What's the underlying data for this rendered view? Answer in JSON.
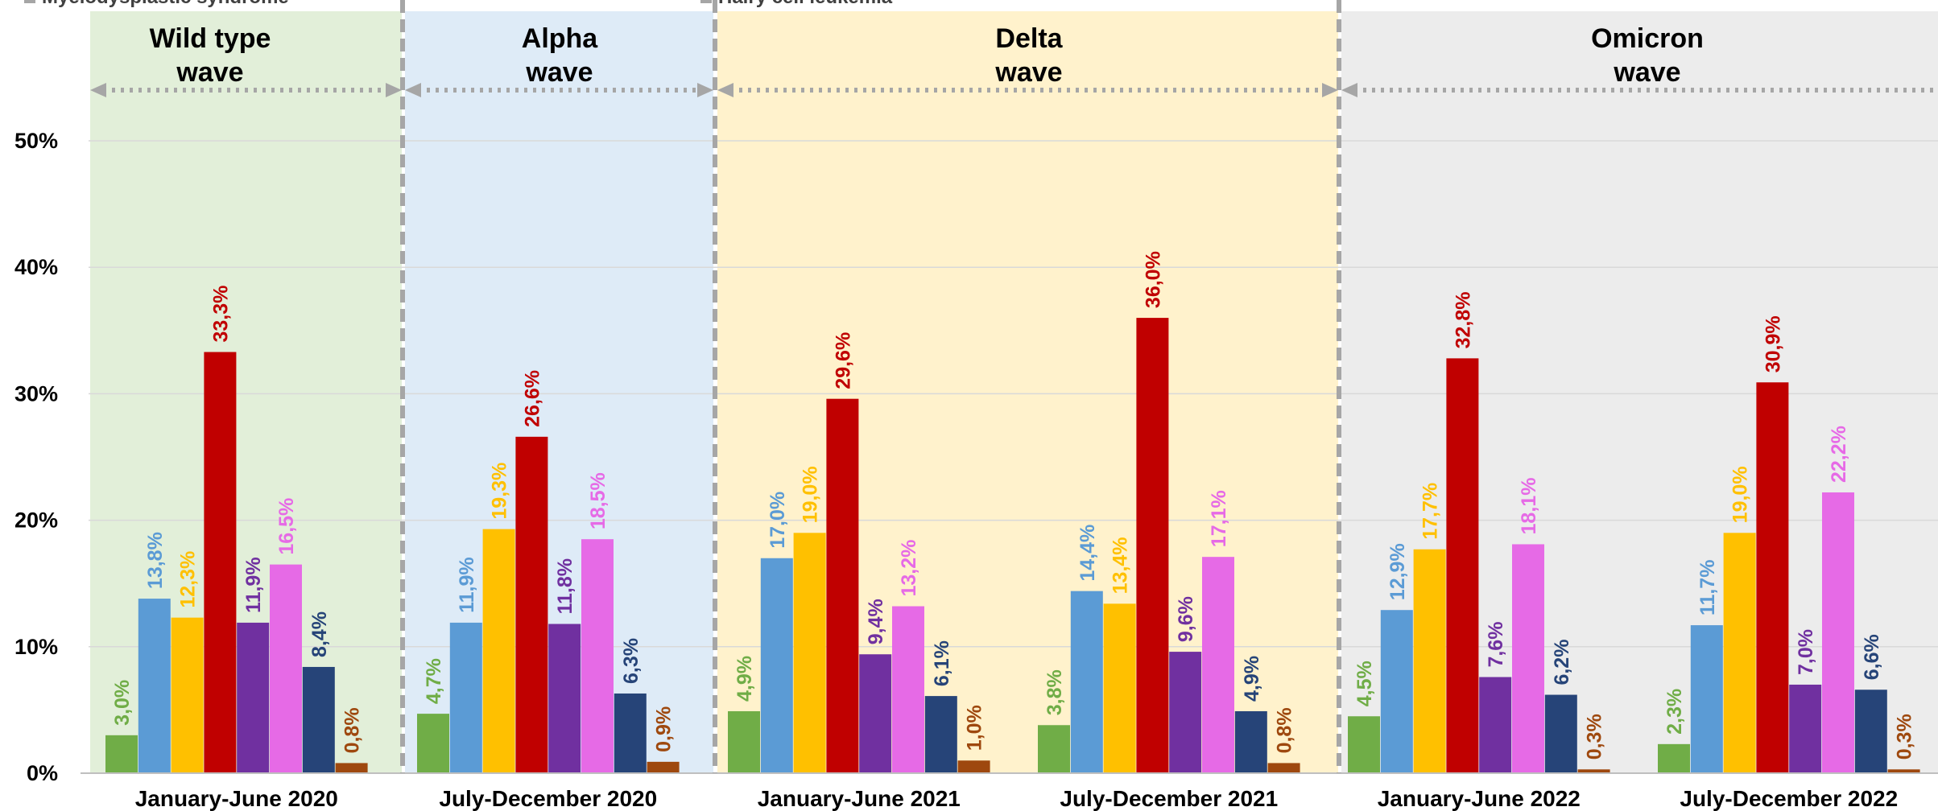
{
  "chart_data": {
    "type": "bar",
    "categories": [
      "January-June 2020",
      "July-December 2020",
      "January-June 2021",
      "July-December 2021",
      "January-June 2022",
      "July-December 2022"
    ],
    "ylim": [
      0,
      50
    ],
    "ytick_values": [
      0,
      10,
      20,
      30,
      40,
      50
    ],
    "ytick_labels": [
      "0%",
      "10%",
      "20%",
      "30%",
      "40%",
      "50%"
    ],
    "legend_partial": [
      "Myelodysplastic syndrome",
      "Hairy cell leukemia"
    ],
    "waves": [
      {
        "line1": "Wild type",
        "line2": "wave",
        "color": "#e2efd9"
      },
      {
        "line1": "Alpha",
        "line2": "wave",
        "color": "#deebf7"
      },
      {
        "line1": "Delta",
        "line2": "wave",
        "color": "#fff2cc"
      },
      {
        "line1": "Omicron",
        "line2": "wave",
        "color": "#ececec"
      }
    ],
    "series": [
      {
        "color": "#70ad47",
        "values": [
          3.0,
          4.7,
          4.9,
          3.8,
          4.5,
          2.3
        ],
        "labels": [
          "3,0%",
          "4,7%",
          "4,9%",
          "3,8%",
          "4,5%",
          "2,3%"
        ]
      },
      {
        "color": "#5b9bd5",
        "values": [
          13.8,
          11.9,
          17.0,
          14.4,
          12.9,
          11.7
        ],
        "labels": [
          "13,8%",
          "11,9%",
          "17,0%",
          "14,4%",
          "12,9%",
          "11,7%"
        ]
      },
      {
        "color": "#ffc000",
        "values": [
          12.3,
          19.3,
          19.0,
          13.4,
          17.7,
          19.0
        ],
        "labels": [
          "12,3%",
          "19,3%",
          "19,0%",
          "13,4%",
          "17,7%",
          "19,0%"
        ]
      },
      {
        "color": "#c00000",
        "values": [
          33.3,
          26.6,
          29.6,
          36.0,
          32.8,
          30.9
        ],
        "labels": [
          "33,3%",
          "26,6%",
          "29,6%",
          "36,0%",
          "32,8%",
          "30,9%"
        ]
      },
      {
        "color": "#7030a0",
        "values": [
          11.9,
          11.8,
          9.4,
          9.6,
          7.6,
          7.0
        ],
        "labels": [
          "11,9%",
          "11,8%",
          "9,4%",
          "9,6%",
          "7,6%",
          "7,0%"
        ]
      },
      {
        "color": "#e66ae6",
        "values": [
          16.5,
          18.5,
          13.2,
          17.1,
          18.1,
          22.2
        ],
        "labels": [
          "16,5%",
          "18,5%",
          "13,2%",
          "17,1%",
          "18,1%",
          "22,2%"
        ]
      },
      {
        "color": "#264478",
        "values": [
          8.4,
          6.3,
          6.1,
          4.9,
          6.2,
          6.6
        ],
        "labels": [
          "8,4%",
          "6,3%",
          "6,1%",
          "4,9%",
          "6,2%",
          "6,6%"
        ]
      },
      {
        "color": "#9e480e",
        "values": [
          0.8,
          0.9,
          1.0,
          0.8,
          0.3,
          0.3
        ],
        "labels": [
          "0,8%",
          "0,9%",
          "1,0%",
          "0,8%",
          "0,3%",
          "0,3%"
        ]
      }
    ]
  }
}
